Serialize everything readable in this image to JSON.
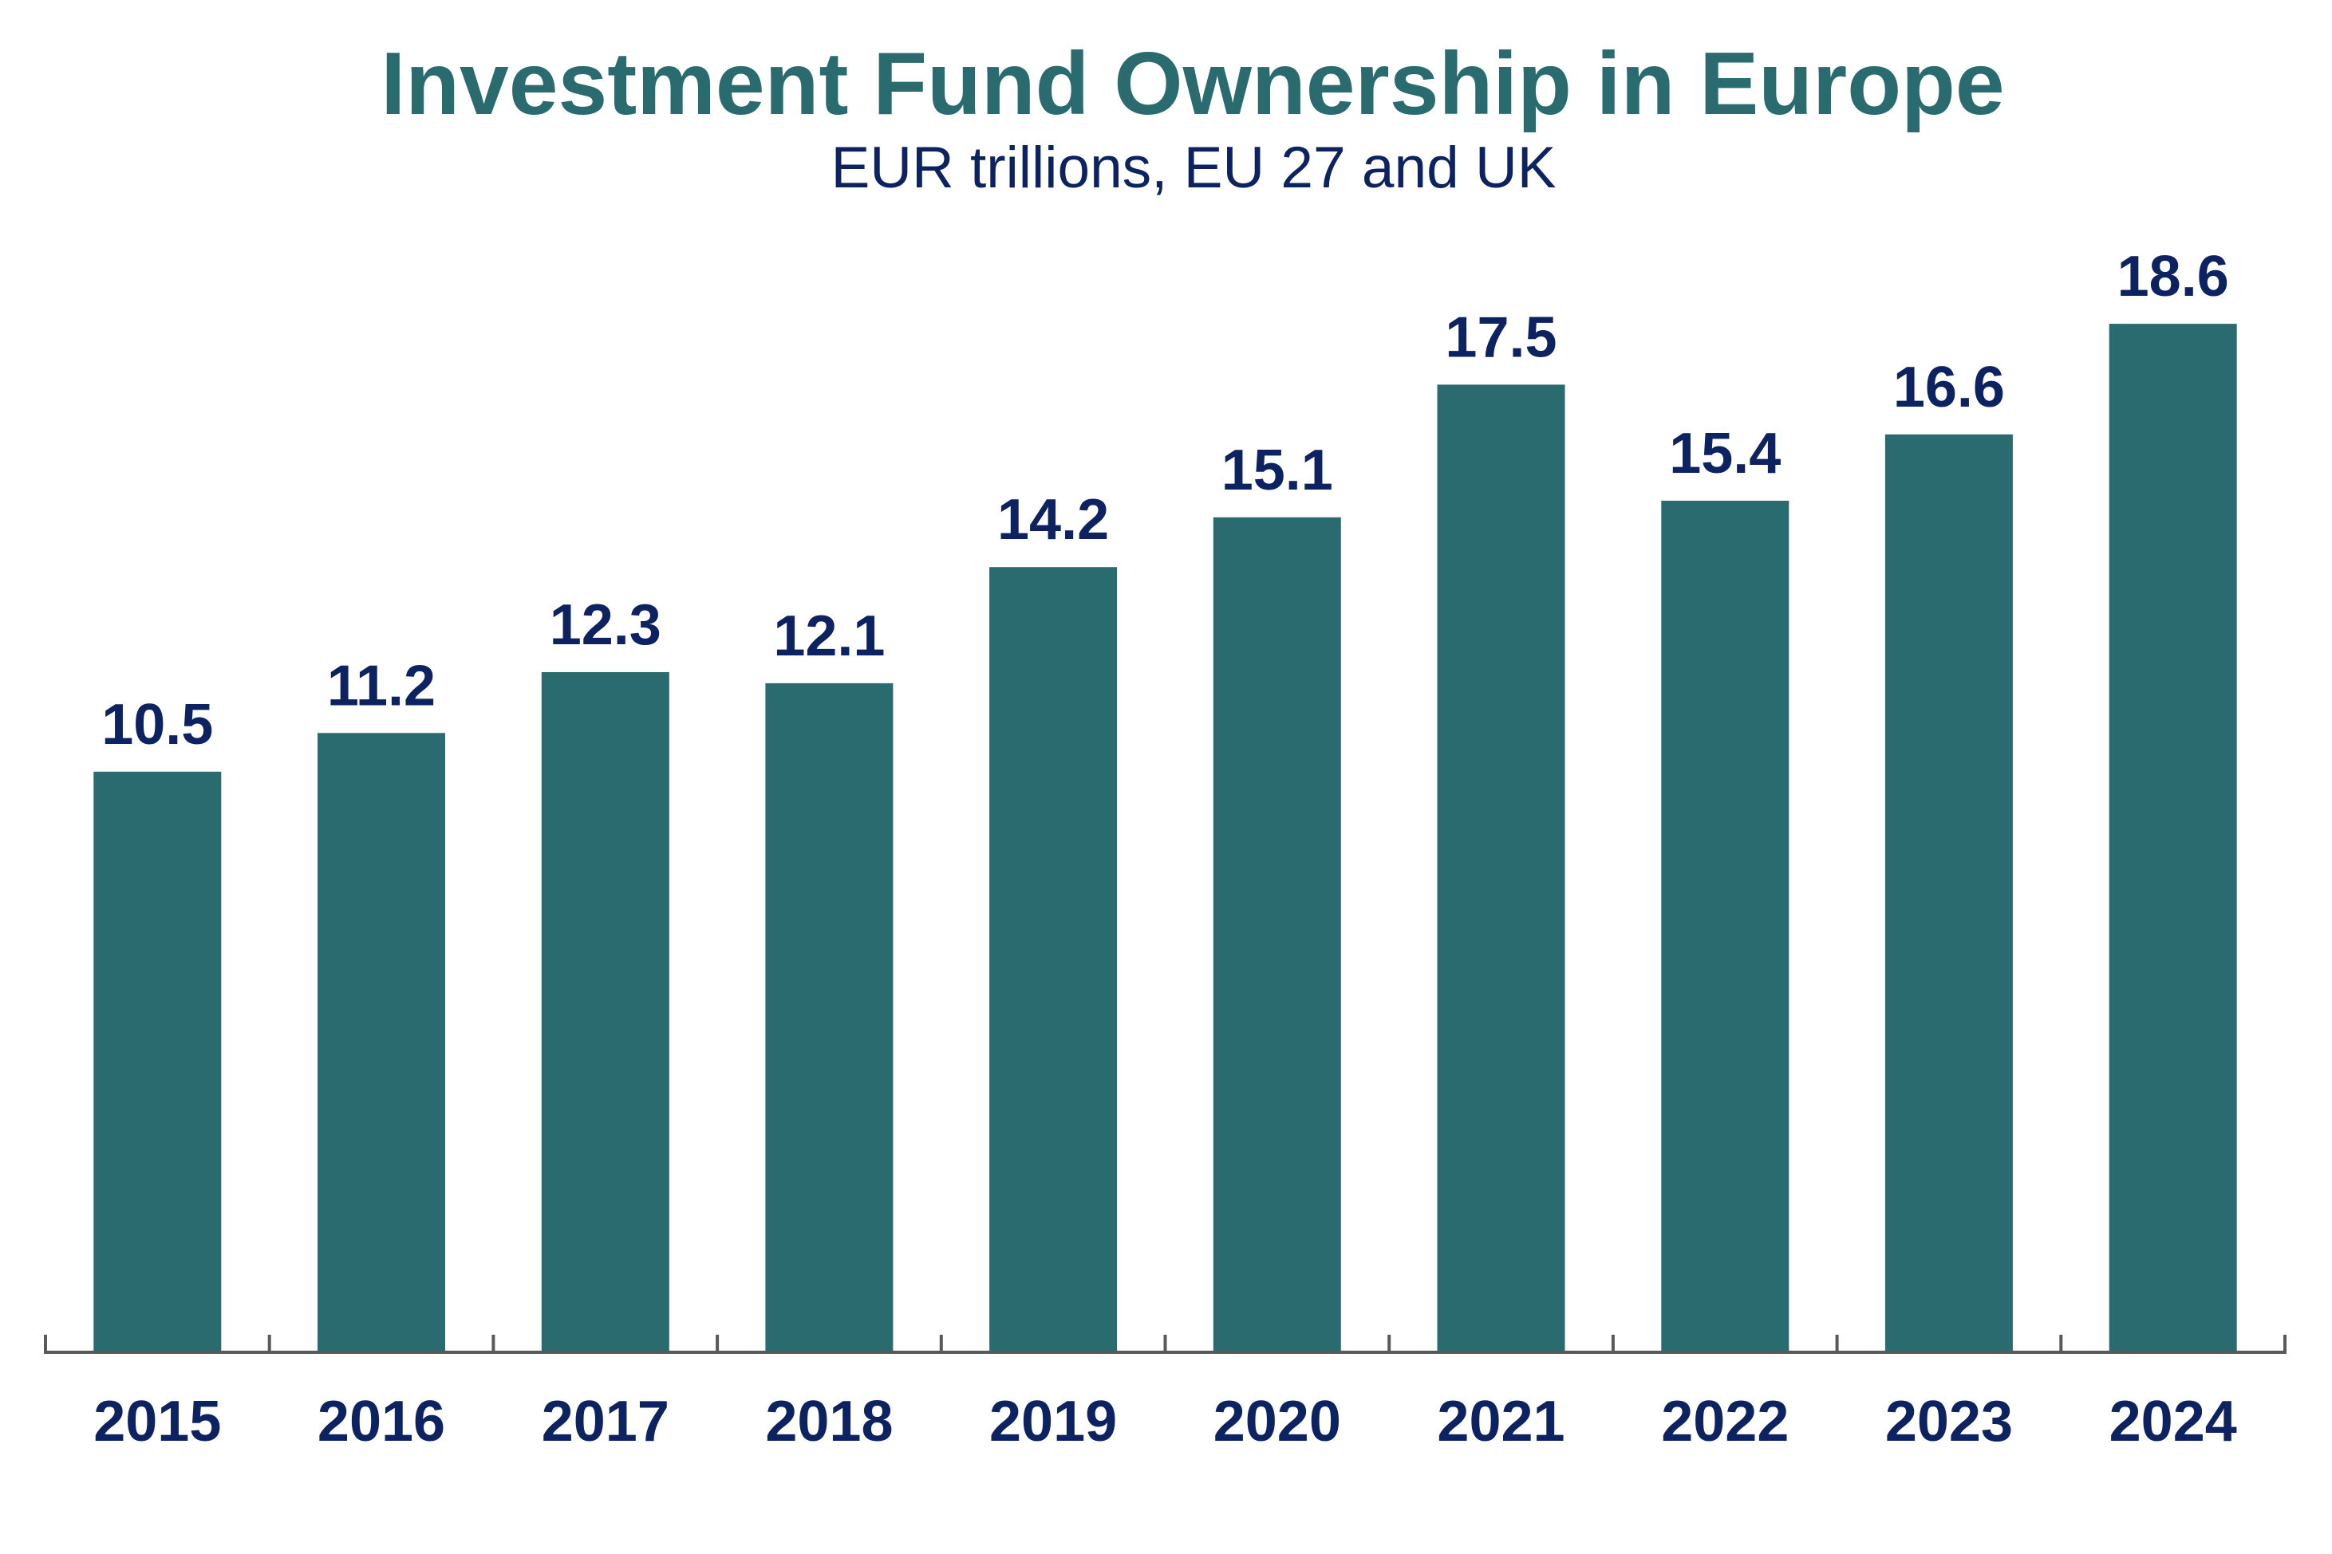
{
  "chart_data": {
    "type": "bar",
    "title": "Investment Fund Ownership in Europe",
    "subtitle": "EUR trillions, EU 27 and UK",
    "xlabel": "",
    "ylabel": "",
    "categories": [
      "2015",
      "2016",
      "2017",
      "2018",
      "2019",
      "2020",
      "2021",
      "2022",
      "2023",
      "2024"
    ],
    "values": [
      10.5,
      11.2,
      12.3,
      12.1,
      14.2,
      15.1,
      17.5,
      15.4,
      16.6,
      18.6
    ],
    "value_labels": [
      "10.5",
      "11.2",
      "12.3",
      "12.1",
      "14.2",
      "15.1",
      "17.5",
      "15.4",
      "16.6",
      "18.6"
    ],
    "ylim": [
      0,
      18.6
    ],
    "grid": false,
    "legend": "none",
    "y_axis_visible": false,
    "colors": {
      "bar": "#2a6b70",
      "title": "#2a6b70",
      "text": "#0c2261",
      "axis": "#595959"
    }
  }
}
